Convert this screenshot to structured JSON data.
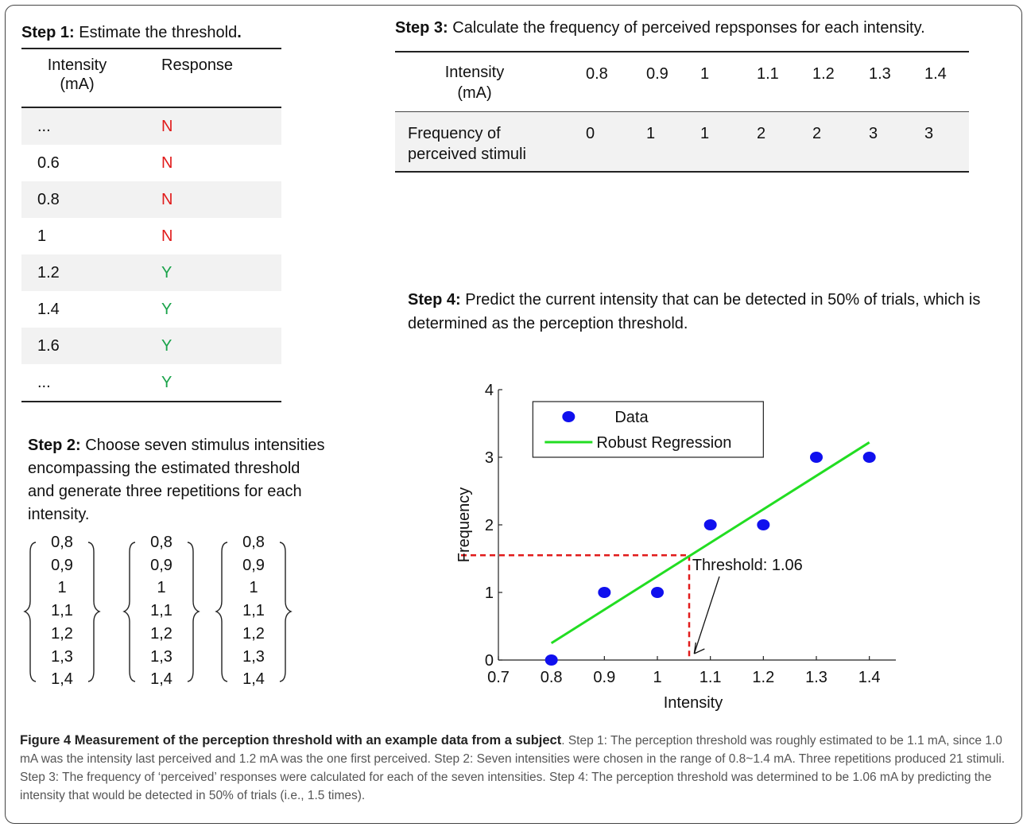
{
  "step1": {
    "label": "Step 1:",
    "text": "Estimate the threshold",
    "period": ".",
    "col_intensity": "Intensity\n(mA)",
    "col_response": "Response",
    "rows": [
      {
        "intensity": "...",
        "response": "N"
      },
      {
        "intensity": "0.6",
        "response": "N"
      },
      {
        "intensity": "0.8",
        "response": "N"
      },
      {
        "intensity": "1",
        "response": "N"
      },
      {
        "intensity": "1.2",
        "response": "Y"
      },
      {
        "intensity": "1.4",
        "response": "Y"
      },
      {
        "intensity": "1.6",
        "response": "Y"
      },
      {
        "intensity": "...",
        "response": "Y"
      }
    ]
  },
  "step2": {
    "label": "Step 2:",
    "text": "Choose seven stimulus intensities encompassing the estimated threshold and generate three repetitions for each intensity.",
    "vector": [
      "0,8",
      "0,9",
      "1",
      "1,1",
      "1,2",
      "1,3",
      "1,4"
    ]
  },
  "step3": {
    "label": "Step 3:",
    "text": "Calculate the frequency of perceived repsponses for each intensity.",
    "row1_label": "Intensity\n(mA)",
    "row2_label": "Frequency of\nperceived stimuli",
    "intensities": [
      "0.8",
      "0.9",
      "1",
      "1.1",
      "1.2",
      "1.3",
      "1.4"
    ],
    "frequencies": [
      "0",
      "1",
      "1",
      "2",
      "2",
      "3",
      "3"
    ]
  },
  "step4": {
    "label": "Step 4:",
    "text": "Predict the current intensity that can be detected in 50% of trials, which is determined as the perception threshold."
  },
  "chart_data": {
    "type": "scatter",
    "xlabel": "Intensity",
    "ylabel": "Frequency",
    "xlim": [
      0.7,
      1.45
    ],
    "ylim": [
      0,
      4
    ],
    "xticks": [
      "0.7",
      "0.8",
      "0.9",
      "1",
      "1.1",
      "1.2",
      "1.3",
      "1.4"
    ],
    "yticks": [
      "0",
      "1",
      "2",
      "3",
      "4"
    ],
    "series": [
      {
        "name": "Data",
        "x": [
          0.8,
          0.9,
          1.0,
          1.1,
          1.2,
          1.3,
          1.4
        ],
        "y": [
          0,
          1,
          1,
          2,
          2,
          3,
          3
        ],
        "color": "#1010ee"
      },
      {
        "name": "Robust Regression",
        "x": [
          0.8,
          1.4
        ],
        "y": [
          0.25,
          3.22
        ],
        "color": "#22dd22"
      }
    ],
    "threshold": {
      "x": 1.06,
      "y": 1.55,
      "label": "Threshold: 1.06",
      "color": "#e11b1b"
    },
    "legend": "top-left",
    "grid": false
  },
  "caption": {
    "title": "Figure 4 Measurement of the perception threshold with an example data from a subject",
    "body": ". Step 1: The perception threshold was roughly estimated to be 1.1 mA, since 1.0 mA was the intensity last perceived and 1.2 mA was the one first perceived. Step 2: Seven intensities were chosen in the range of 0.8~1.4 mA. Three repetitions produced 21 stimuli. Step 3: The frequency of ‘perceived’ responses were calculated for each of the seven intensities. Step 4: The perception threshold was determined to be 1.06 mA by predicting the intensity that would be detected in 50% of trials (i.e., 1.5 times)."
  }
}
